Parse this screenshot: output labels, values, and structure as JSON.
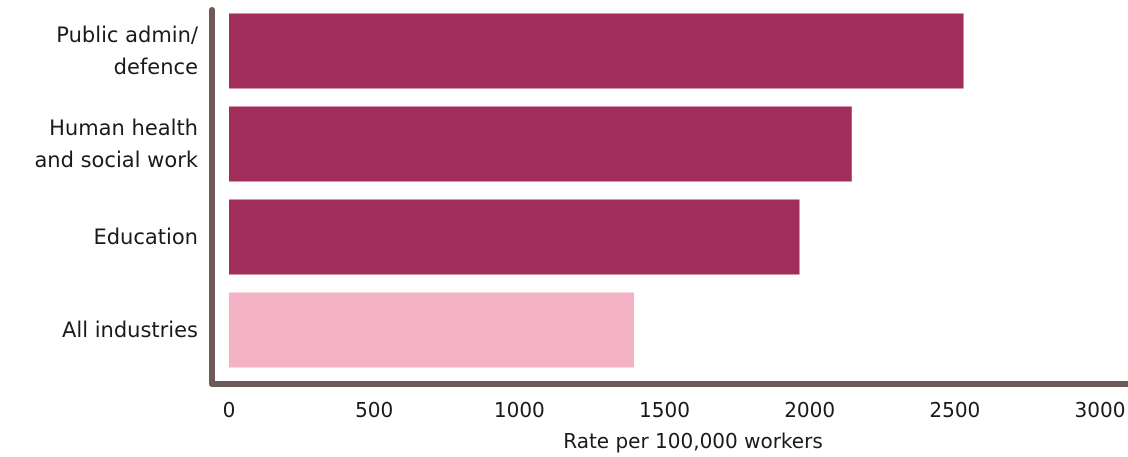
{
  "chart_data": {
    "type": "bar",
    "orientation": "horizontal",
    "categories": [
      [
        "Public admin/",
        "defence"
      ],
      [
        "Human health",
        "and social work"
      ],
      [
        "Education"
      ],
      [
        "All industries"
      ]
    ],
    "values": [
      2530,
      2145,
      1965,
      1395
    ],
    "colors": [
      "#a12d5a",
      "#a12d5a",
      "#a12d5a",
      "#f4b3c4"
    ],
    "xlabel": "Rate per 100,000 workers",
    "ylabel": "",
    "xlim": [
      0,
      3000
    ],
    "xticks": [
      0,
      500,
      1000,
      1500,
      2000,
      2500,
      3000
    ],
    "grid": false,
    "axis_color": "#6e5a57"
  }
}
